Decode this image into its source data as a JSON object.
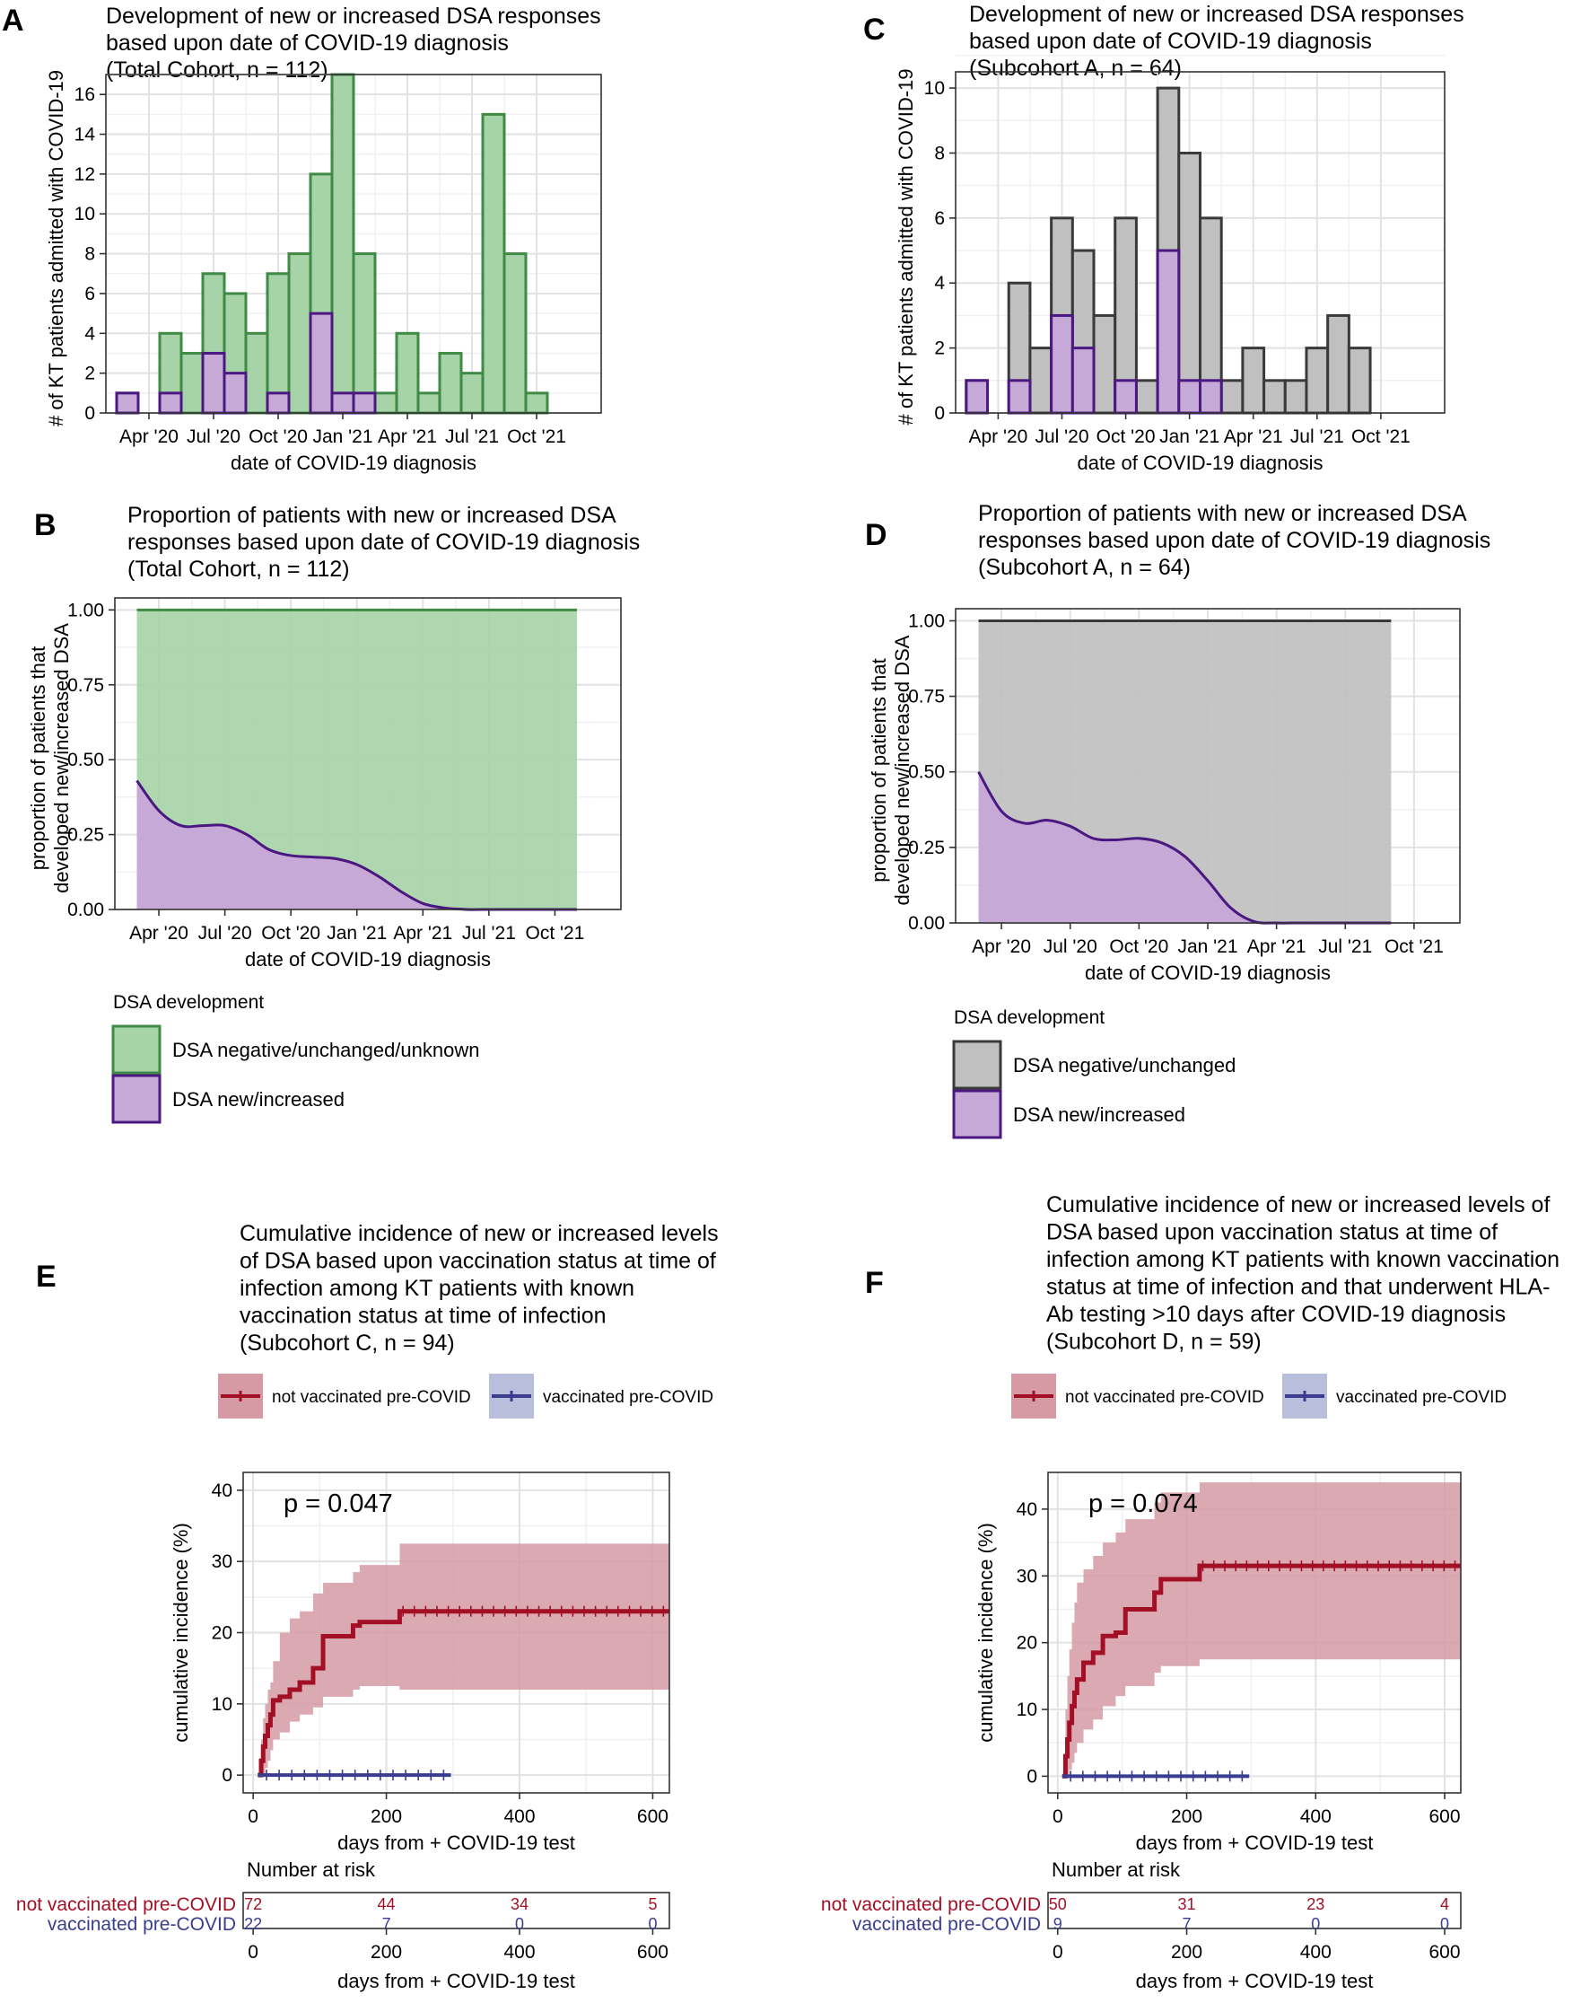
{
  "colors": {
    "green_fill": "#a7d3a8",
    "green_line": "#3f8a44",
    "purple_fill": "#c6a9d6",
    "purple_line": "#4b1780",
    "gray_fill": "#c0c0c0",
    "gray_line": "#3a3a3a",
    "red_line": "#a30f25",
    "red_band": "#d59aa3",
    "blue_line": "#3a3d8f",
    "blue_band": "#b8bedb"
  },
  "chart_data": [
    {
      "id": "A",
      "panel_label": "A",
      "type": "bar",
      "title_lines": [
        "Development of new or increased DSA responses",
        "based upon date of COVID-19 diagnosis",
        "(Total Cohort, n = 112)"
      ],
      "xlabel": "date of COVID-19 diagnosis",
      "ylabel": "# of KT patients admitted with COVID-19",
      "x_ticks": [
        [
          "Apr '20",
          1
        ],
        [
          "Jul '20",
          4
        ],
        [
          "Oct '20",
          7
        ],
        [
          "Jan '21",
          10
        ],
        [
          "Apr '21",
          13
        ],
        [
          "Jul '21",
          16
        ],
        [
          "Oct '21",
          19
        ]
      ],
      "y_ticks": [
        0,
        2,
        4,
        6,
        8,
        10,
        12,
        14,
        16
      ],
      "ylim": [
        0,
        17
      ],
      "xlim": [
        -1,
        22
      ],
      "bin_start": 0,
      "series": [
        {
          "name": "DSA negative/unchanged/unknown",
          "values": [
            1,
            0,
            4,
            3,
            7,
            6,
            4,
            7,
            8,
            12,
            17,
            8,
            1,
            4,
            1,
            3,
            2,
            15,
            8,
            1
          ]
        },
        {
          "name": "DSA new/increased",
          "values": [
            1,
            0,
            1,
            0,
            3,
            2,
            0,
            1,
            0,
            5,
            1,
            1,
            0,
            0,
            0,
            0,
            0,
            0,
            0,
            0
          ]
        }
      ],
      "grid": true
    },
    {
      "id": "C",
      "panel_label": "C",
      "type": "bar",
      "title_lines": [
        "Development of new or increased DSA responses",
        "based upon date of COVID-19 diagnosis",
        "(Subcohort A, n = 64)"
      ],
      "xlabel": "date of COVID-19 diagnosis",
      "ylabel": "# of KT patients admitted with COVID-19",
      "x_ticks": [
        [
          "Apr '20",
          1
        ],
        [
          "Jul '20",
          4
        ],
        [
          "Oct '20",
          7
        ],
        [
          "Jan '21",
          10
        ],
        [
          "Apr '21",
          13
        ],
        [
          "Jul '21",
          16
        ],
        [
          "Oct '21",
          19
        ]
      ],
      "y_ticks": [
        0,
        2,
        4,
        6,
        8,
        10
      ],
      "ylim": [
        0,
        10.5
      ],
      "xlim": [
        -1,
        22
      ],
      "bin_start": 0,
      "series": [
        {
          "name": "DSA negative/unchanged",
          "values": [
            1,
            0,
            4,
            2,
            6,
            5,
            3,
            6,
            1,
            10,
            8,
            6,
            1,
            2,
            1,
            1,
            2,
            3,
            2
          ]
        },
        {
          "name": "DSA new/increased",
          "values": [
            1,
            0,
            1,
            0,
            3,
            2,
            0,
            1,
            0,
            5,
            1,
            1,
            0,
            0,
            0,
            0,
            0,
            0,
            0
          ]
        }
      ],
      "grid": true
    },
    {
      "id": "B",
      "panel_label": "B",
      "type": "area",
      "title_lines": [
        "Proportion of patients with new or increased DSA",
        "responses based upon date of COVID-19 diagnosis",
        "(Total Cohort, n = 112)"
      ],
      "xlabel": "date of COVID-19 diagnosis",
      "ylabel_lines": [
        "proportion of patients that",
        "developed new/increased DSA"
      ],
      "x_ticks": [
        [
          "Apr '20",
          1
        ],
        [
          "Jul '20",
          4
        ],
        [
          "Oct '20",
          7
        ],
        [
          "Jan '21",
          10
        ],
        [
          "Apr '21",
          13
        ],
        [
          "Jul '21",
          16
        ],
        [
          "Oct '21",
          19
        ]
      ],
      "y_ticks": [
        [
          "0.00",
          0
        ],
        [
          "0.25",
          0.25
        ],
        [
          "0.50",
          0.5
        ],
        [
          "0.75",
          0.75
        ],
        [
          "1.00",
          1
        ]
      ],
      "ylim": [
        0,
        1.04
      ],
      "xlim": [
        -1,
        22
      ],
      "x": [
        0,
        1,
        2,
        3,
        4,
        5,
        6,
        7,
        8,
        9,
        10,
        11,
        12,
        13,
        14,
        15,
        16,
        17,
        18,
        19,
        20
      ],
      "values": [
        0.43,
        0.33,
        0.28,
        0.28,
        0.28,
        0.25,
        0.2,
        0.18,
        0.175,
        0.17,
        0.15,
        0.11,
        0.06,
        0.02,
        0.005,
        0,
        0,
        0,
        0,
        0,
        0
      ],
      "legend": {
        "title": "DSA development",
        "entries": [
          "DSA negative/unchanged/unknown",
          "DSA new/increased"
        ]
      },
      "grid": true
    },
    {
      "id": "D",
      "panel_label": "D",
      "type": "area",
      "title_lines": [
        "Proportion of patients with new or increased DSA",
        "responses based upon date of COVID-19 diagnosis",
        "(Subcohort A, n = 64)"
      ],
      "xlabel": "date of COVID-19 diagnosis",
      "ylabel_lines": [
        "proportion of patients that",
        "developed new/increased DSA"
      ],
      "x_ticks": [
        [
          "Apr '20",
          1
        ],
        [
          "Jul '20",
          4
        ],
        [
          "Oct '20",
          7
        ],
        [
          "Jan '21",
          10
        ],
        [
          "Apr '21",
          13
        ],
        [
          "Jul '21",
          16
        ],
        [
          "Oct '21",
          19
        ]
      ],
      "y_ticks": [
        [
          "0.00",
          0
        ],
        [
          "0.25",
          0.25
        ],
        [
          "0.50",
          0.5
        ],
        [
          "0.75",
          0.75
        ],
        [
          "1.00",
          1
        ]
      ],
      "ylim": [
        0,
        1.04
      ],
      "xlim": [
        -1,
        21
      ],
      "x": [
        0,
        1,
        2,
        3,
        4,
        5,
        6,
        7,
        8,
        9,
        10,
        11,
        12,
        13,
        14,
        15,
        16,
        17,
        18
      ],
      "values": [
        0.5,
        0.37,
        0.33,
        0.34,
        0.32,
        0.28,
        0.275,
        0.28,
        0.265,
        0.22,
        0.14,
        0.05,
        0.005,
        0,
        0,
        0,
        0,
        0,
        0
      ],
      "legend": {
        "title": "DSA development",
        "entries": [
          "DSA negative/unchanged",
          "DSA new/increased"
        ]
      },
      "grid": true
    },
    {
      "id": "E",
      "panel_label": "E",
      "type": "line",
      "title_lines": [
        "Cumulative incidence of new or increased levels",
        "of DSA based upon vaccination status at time of",
        "infection among KT patients with known",
        "vaccination status at time of infection",
        "(Subcohort C, n = 94)"
      ],
      "legend_entries": [
        "not vaccinated pre-COVID",
        "vaccinated pre-COVID"
      ],
      "p_value": "p = 0.047",
      "xlabel": "days from + COVID-19 test",
      "ylabel": "cumulative incidence (%)",
      "x_ticks": [
        0,
        200,
        400,
        600
      ],
      "y_ticks": [
        0,
        10,
        20,
        30,
        40
      ],
      "xlim": [
        -15,
        625
      ],
      "ylim": [
        -2.5,
        42.5
      ],
      "series": [
        {
          "name": "not vaccinated pre-COVID",
          "x": [
            7,
            12,
            15,
            18,
            22,
            26,
            30,
            40,
            55,
            70,
            90,
            105,
            150,
            160,
            220,
            625
          ],
          "values": [
            0,
            2,
            4,
            5.5,
            7,
            8.5,
            10.5,
            11,
            12,
            13,
            15,
            19.5,
            21,
            21.5,
            23,
            23
          ],
          "upper": [
            0,
            5,
            8,
            10,
            12,
            13,
            16,
            20,
            22,
            23,
            25.5,
            27,
            28.5,
            29.5,
            32.5,
            32.5
          ],
          "lower": [
            0,
            0,
            0,
            1,
            2,
            3.5,
            5,
            6,
            7.5,
            8.5,
            9.5,
            11,
            12,
            12.5,
            12,
            12
          ]
        },
        {
          "name": "vaccinated pre-COVID",
          "x": [
            7,
            297
          ],
          "values": [
            0,
            0
          ]
        }
      ],
      "risk_table": {
        "title": "Number at risk",
        "times": [
          0,
          200,
          400,
          600
        ],
        "rows": [
          {
            "name": "not vaccinated pre-COVID",
            "values": [
              "72",
              "44",
              "34",
              "5"
            ]
          },
          {
            "name": "vaccinated pre-COVID",
            "values": [
              "22",
              "7",
              "0",
              "0"
            ]
          }
        ]
      },
      "grid": true
    },
    {
      "id": "F",
      "panel_label": "F",
      "type": "line",
      "title_lines": [
        "Cumulative incidence of new or increased levels of",
        "DSA based upon vaccination status at time of",
        "infection among KT patients with known vaccination",
        "status at time of infection and that underwent HLA-",
        "Ab testing >10 days after COVID-19 diagnosis",
        "(Subcohort D, n = 59)"
      ],
      "legend_entries": [
        "not vaccinated pre-COVID",
        "vaccinated pre-COVID"
      ],
      "p_value": "p = 0.074",
      "xlabel": "days from + COVID-19 test",
      "ylabel": "cumulative incidence (%)",
      "x_ticks": [
        0,
        200,
        400,
        600
      ],
      "y_ticks": [
        0,
        10,
        20,
        30,
        40
      ],
      "xlim": [
        -15,
        625
      ],
      "ylim": [
        -2.5,
        45.5
      ],
      "series": [
        {
          "name": "not vaccinated pre-COVID",
          "x": [
            7,
            12,
            15,
            18,
            22,
            26,
            30,
            40,
            55,
            70,
            90,
            105,
            150,
            160,
            220,
            625
          ],
          "values": [
            0,
            3,
            5.5,
            8,
            10.5,
            12.5,
            14.5,
            17,
            18.5,
            21,
            21.5,
            25,
            27.5,
            29.5,
            31.5,
            31.5
          ],
          "upper": [
            0,
            10,
            15,
            19,
            23,
            26,
            29,
            31,
            33,
            35,
            36.5,
            38.5,
            41,
            42.5,
            44,
            44
          ],
          "lower": [
            0,
            0,
            0,
            1,
            2,
            3.5,
            5,
            7,
            8.5,
            10.5,
            12,
            13.5,
            15.5,
            16.5,
            17.5,
            17.5
          ]
        },
        {
          "name": "vaccinated pre-COVID",
          "x": [
            7,
            297
          ],
          "values": [
            0,
            0
          ]
        }
      ],
      "risk_table": {
        "title": "Number at risk",
        "times": [
          0,
          200,
          400,
          600
        ],
        "rows": [
          {
            "name": "not vaccinated pre-COVID",
            "values": [
              "50",
              "31",
              "23",
              "4"
            ]
          },
          {
            "name": "vaccinated pre-COVID",
            "values": [
              "9",
              "7",
              "0",
              "0"
            ]
          }
        ]
      },
      "grid": true
    }
  ]
}
